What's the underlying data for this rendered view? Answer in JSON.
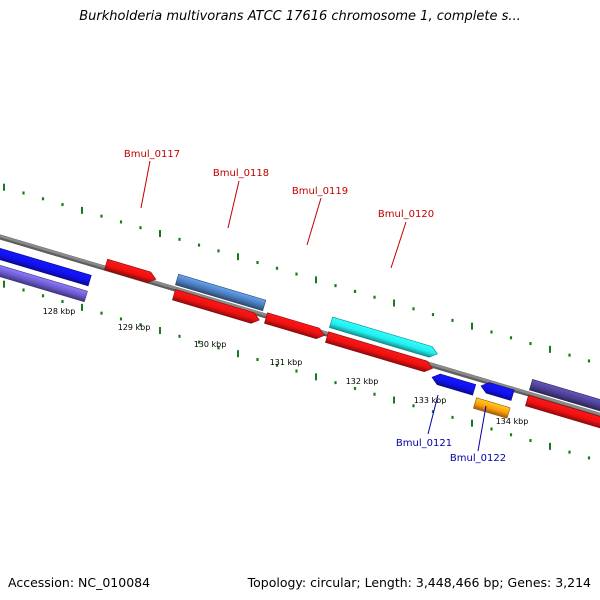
{
  "title": "Burkholderia multivorans ATCC 17616 chromosome 1, complete s...",
  "footer": {
    "accession": "Accession: NC_010084",
    "summary": "Topology: circular; Length: 3,448,466 bp; Genes: 3,214"
  },
  "scale_labels": [
    "128 kbp",
    "129 kbp",
    "130 kbp",
    "131 kbp",
    "132 kbp",
    "133 kbp",
    "134 kbp"
  ],
  "gene_labels": {
    "forward": [
      "Bmul_0117",
      "Bmul_0118",
      "Bmul_0119",
      "Bmul_0120"
    ],
    "reverse": [
      "Bmul_0121",
      "Bmul_0122"
    ]
  },
  "colors": {
    "backbone": "#8a8a8a",
    "forward_label": "#c00000",
    "reverse_label": "#0000aa",
    "tick": "#1a7a1a",
    "cds_red": "#ee1111",
    "gene_blue": "#1111ee",
    "gene_steelblue": "#4a7ab8",
    "gene_cyan": "#22eeee",
    "gene_purple": "#6a5acd",
    "gene_darkpurple": "#4b3f8f",
    "gene_orange": "#ff9a10"
  }
}
